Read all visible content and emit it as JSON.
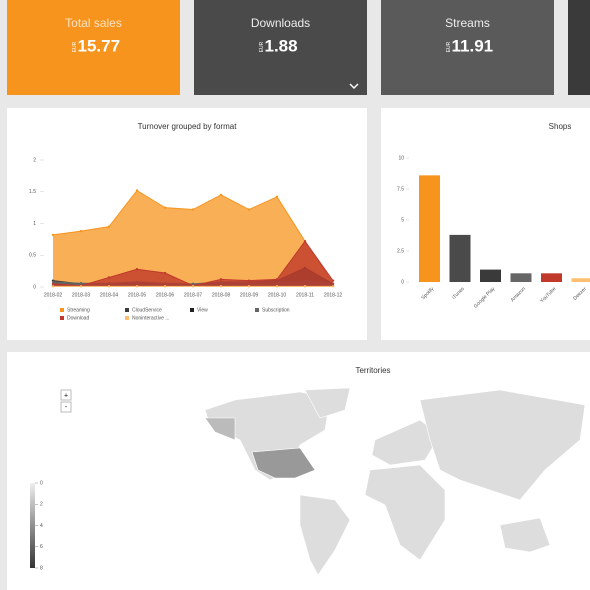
{
  "kpis": [
    {
      "label": "Total sales",
      "currency": "EUR",
      "value": 15.77
    },
    {
      "label": "Downloads",
      "currency": "EUR",
      "value": 1.88
    },
    {
      "label": "Streams",
      "currency": "EUR",
      "value": 11.91
    }
  ],
  "chart_data": [
    {
      "type": "area",
      "title": "Turnover grouped by format",
      "categories": [
        "2018-02",
        "2018-03",
        "2018-04",
        "2018-05",
        "2018-06",
        "2018-07",
        "2018-08",
        "2018-09",
        "2018-10",
        "2018-11",
        "2018-12"
      ],
      "ylim": [
        0,
        2
      ],
      "yticks": [
        0,
        0.5,
        1,
        1.5,
        2
      ],
      "series": [
        {
          "name": "Streaming",
          "color": "#f7941d",
          "values": [
            0.82,
            0.88,
            0.95,
            1.52,
            1.25,
            1.22,
            1.45,
            1.22,
            1.42,
            0.72,
            0.05
          ]
        },
        {
          "name": "CloudService",
          "color": "#3a3a3a",
          "values": [
            0.1,
            0.05,
            0.05,
            0.06,
            0.05,
            0.04,
            0.06,
            0.08,
            0.1,
            0.3,
            0.05
          ]
        },
        {
          "name": "View",
          "color": "#222222",
          "values": [
            0.02,
            0.02,
            0.02,
            0.02,
            0.02,
            0.02,
            0.02,
            0.02,
            0.02,
            0.02,
            0.02
          ]
        },
        {
          "name": "Subscription",
          "color": "#666666",
          "values": [
            0.08,
            0.06,
            0.06,
            0.08,
            0.06,
            0.05,
            0.08,
            0.08,
            0.08,
            0.1,
            0.05
          ]
        },
        {
          "name": "Download",
          "color": "#c0392b",
          "values": [
            0.05,
            0.02,
            0.15,
            0.28,
            0.22,
            0.02,
            0.12,
            0.1,
            0.12,
            0.72,
            0.1
          ]
        },
        {
          "name": "Noninteractive ...",
          "color": "#fdbf6f",
          "values": [
            0.01,
            0.01,
            0.01,
            0.01,
            0.01,
            0.01,
            0.01,
            0.01,
            0.01,
            0.01,
            0.01
          ]
        }
      ]
    },
    {
      "type": "bar",
      "title": "Shops",
      "categories": [
        "Spotify",
        "iTunes",
        "Google Play",
        "Amazon",
        "YouTube",
        "Deezer"
      ],
      "values": [
        8.6,
        3.8,
        1.0,
        0.7,
        0.7,
        0.3
      ],
      "colors": [
        "#f7941d",
        "#4a4a4a",
        "#3a3a3a",
        "#666666",
        "#c0392b",
        "#fdbf6f"
      ],
      "ylim": [
        0,
        10
      ],
      "yticks": [
        0,
        2.5,
        5,
        7.5,
        10
      ]
    }
  ],
  "map": {
    "title": "Territories",
    "zoom_in": "+",
    "zoom_out": "-",
    "legend_ticks": [
      0,
      2,
      4,
      6,
      8
    ]
  }
}
